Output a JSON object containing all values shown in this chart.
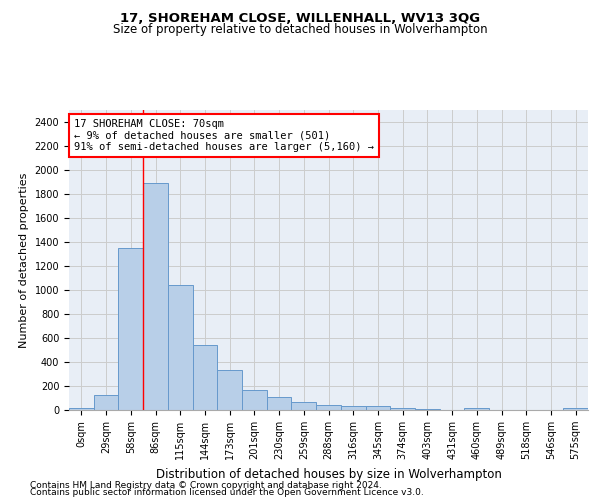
{
  "title": "17, SHOREHAM CLOSE, WILLENHALL, WV13 3QG",
  "subtitle": "Size of property relative to detached houses in Wolverhampton",
  "xlabel": "Distribution of detached houses by size in Wolverhampton",
  "ylabel": "Number of detached properties",
  "bar_labels": [
    "0sqm",
    "29sqm",
    "58sqm",
    "86sqm",
    "115sqm",
    "144sqm",
    "173sqm",
    "201sqm",
    "230sqm",
    "259sqm",
    "288sqm",
    "316sqm",
    "345sqm",
    "374sqm",
    "403sqm",
    "431sqm",
    "460sqm",
    "489sqm",
    "518sqm",
    "546sqm",
    "575sqm"
  ],
  "bar_heights": [
    15,
    125,
    1350,
    1890,
    1045,
    545,
    335,
    165,
    110,
    65,
    40,
    30,
    30,
    20,
    10,
    0,
    20,
    0,
    0,
    0,
    15
  ],
  "bar_color": "#b8cfe8",
  "bar_edge_color": "#6699cc",
  "grid_color": "#cccccc",
  "bg_color": "#e8eef6",
  "annotation_line1": "17 SHOREHAM CLOSE: 70sqm",
  "annotation_line2": "← 9% of detached houses are smaller (501)",
  "annotation_line3": "91% of semi-detached houses are larger (5,160) →",
  "vline_x": 2.5,
  "ylim": [
    0,
    2500
  ],
  "yticks": [
    0,
    200,
    400,
    600,
    800,
    1000,
    1200,
    1400,
    1600,
    1800,
    2000,
    2200,
    2400
  ],
  "footer1": "Contains HM Land Registry data © Crown copyright and database right 2024.",
  "footer2": "Contains public sector information licensed under the Open Government Licence v3.0.",
  "title_fontsize": 9.5,
  "subtitle_fontsize": 8.5,
  "xlabel_fontsize": 8.5,
  "ylabel_fontsize": 8,
  "tick_fontsize": 7,
  "footer_fontsize": 6.5,
  "annot_fontsize": 7.5
}
